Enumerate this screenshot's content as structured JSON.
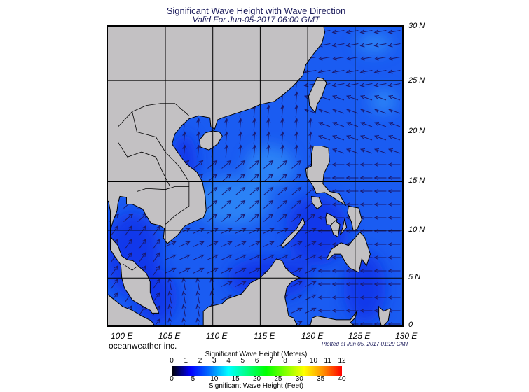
{
  "header": {
    "title": "Significant Wave Height with Wave Direction",
    "subtitle": "Valid For Jun-05-2017 06:00 GMT"
  },
  "map": {
    "lat_labels": [
      "30 N",
      "25 N",
      "20 N",
      "15 N",
      "10 N",
      "5 N",
      "0"
    ],
    "lon_labels": [
      "100 E",
      "105 E",
      "110 E",
      "115 E",
      "120 E",
      "125 E",
      "130 E"
    ],
    "colors": {
      "land": "#c3c1c3",
      "sea_base": "#1a5cf2",
      "sea_light": "#2e8cf6",
      "sea_deep": "#0a2ee8",
      "arrow": "#1a1a70",
      "grid": "#000000"
    }
  },
  "footer": {
    "credit": "oceanweather inc.",
    "plotted": "Plotted at Jun 05, 2017 01:29 GMT"
  },
  "colorbar": {
    "title_top": "Significant Wave Height (Meters)",
    "ticks_meters": [
      "0",
      "1",
      "2",
      "3",
      "4",
      "5",
      "6",
      "7",
      "8",
      "9",
      "10",
      "11",
      "12"
    ],
    "ticks_feet": [
      "0",
      "5",
      "10",
      "15",
      "20",
      "25",
      "30",
      "35",
      "40"
    ],
    "title_bottom": "Significant Wave Height (Feet)",
    "range_meters": [
      0,
      12
    ],
    "range_feet": [
      0,
      40
    ],
    "stops": [
      "#000000",
      "#0000ff",
      "#0070ff",
      "#00ffff",
      "#00ff80",
      "#00ff00",
      "#80ff00",
      "#ffff00",
      "#ff9000",
      "#ff0000"
    ]
  }
}
